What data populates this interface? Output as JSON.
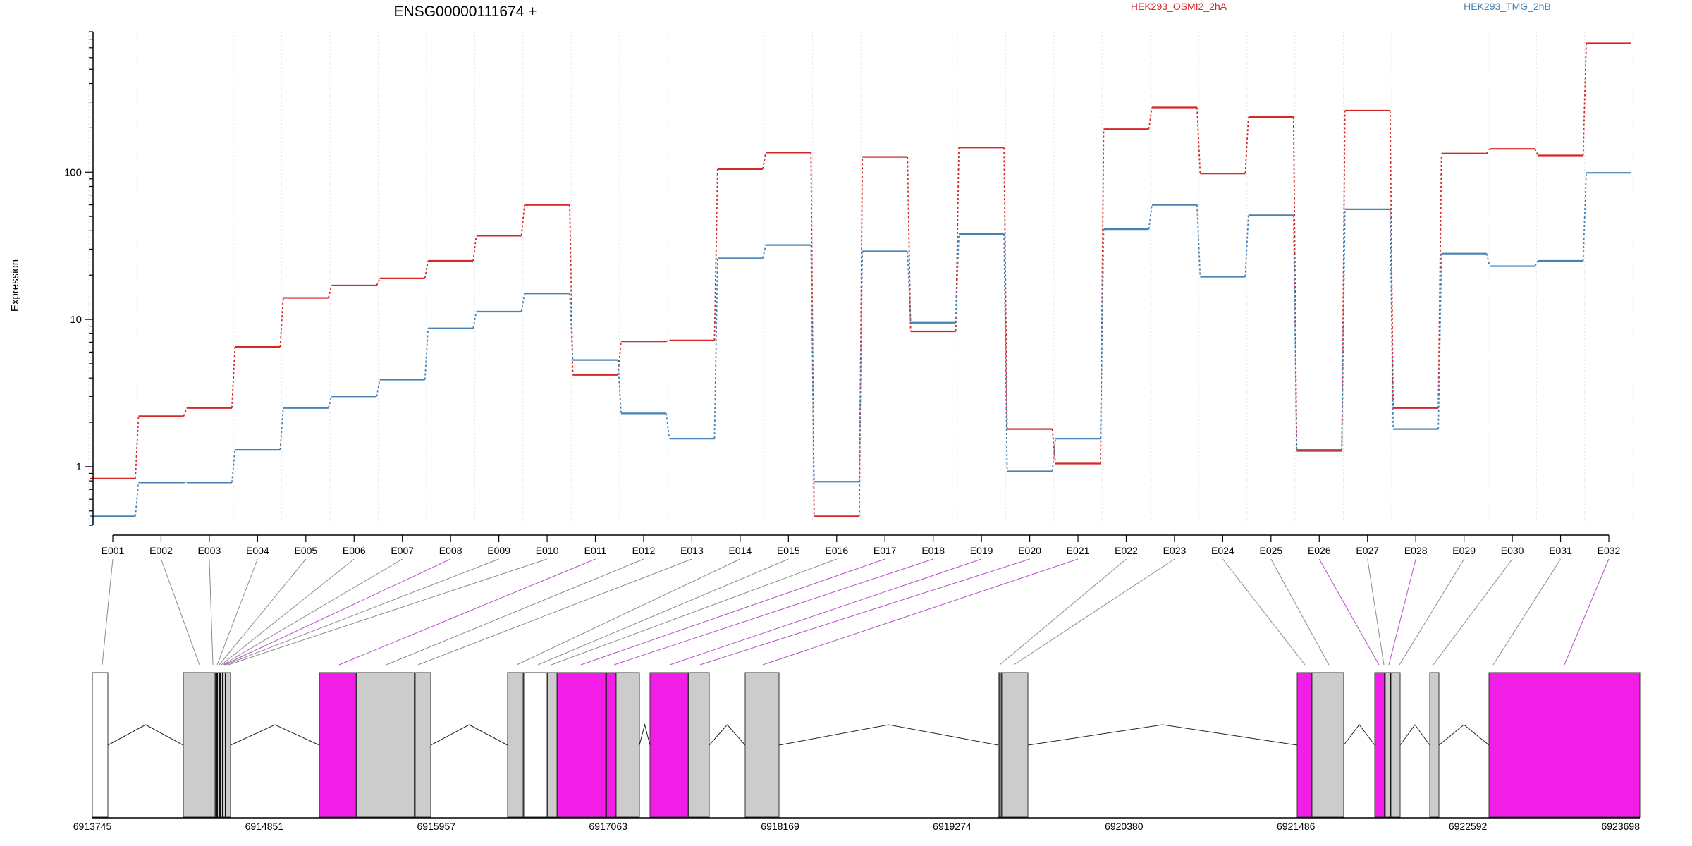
{
  "chart_data": {
    "type": "line",
    "title": "ENSG00000111674 +",
    "ylabel": "Expression",
    "xlabel": "",
    "y_scale": "log",
    "ylim": [
      0.4,
      900
    ],
    "y_ticks": [
      1,
      10,
      100
    ],
    "y_tick_labels": [
      "1",
      "10",
      "100"
    ],
    "grid": "vertical dotted lines at exon boundaries",
    "legend_position": "top",
    "categories": [
      "E001",
      "E002",
      "E003",
      "E004",
      "E005",
      "E006",
      "E007",
      "E008",
      "E009",
      "E010",
      "E011",
      "E012",
      "E013",
      "E014",
      "E015",
      "E016",
      "E017",
      "E018",
      "E019",
      "E020",
      "E021",
      "E022",
      "E023",
      "E024",
      "E025",
      "E026",
      "E027",
      "E028",
      "E029",
      "E030",
      "E031",
      "E032"
    ],
    "series": [
      {
        "name": "HEK293_OSMI2_2hA",
        "color": "#d62728",
        "values": [
          0.83,
          2.2,
          2.5,
          6.5,
          14,
          17,
          19,
          25,
          37,
          60,
          4.2,
          7.1,
          7.2,
          105,
          136,
          0.46,
          127,
          8.3,
          147,
          1.8,
          1.05,
          196,
          275,
          98,
          237,
          1.28,
          262,
          2.5,
          134,
          144,
          130,
          750
        ]
      },
      {
        "name": "HEK293_TMG_2hB",
        "color": "#4682b4",
        "values": [
          0.46,
          0.78,
          0.78,
          1.3,
          2.5,
          3.0,
          3.9,
          8.7,
          11.3,
          15,
          5.3,
          2.3,
          1.55,
          26,
          32,
          0.79,
          29,
          9.5,
          38,
          0.93,
          1.55,
          41,
          60,
          19.5,
          51,
          1.3,
          56,
          1.8,
          28,
          23,
          25,
          99
        ]
      }
    ],
    "gene_model": {
      "coordinate_labels": [
        "6913745",
        "6914851",
        "6915957",
        "6917063",
        "6918169",
        "6919274",
        "6920380",
        "6921486",
        "6922592",
        "6923698"
      ],
      "exon_colors": {
        "default": "#cccccc",
        "highlight": "#f21ee8",
        "noncoding": "#ffffff"
      },
      "highlighted_exons": [
        "E008",
        "E011",
        "E017",
        "E018",
        "E019",
        "E020",
        "E021",
        "E026",
        "E028",
        "E032"
      ]
    }
  }
}
